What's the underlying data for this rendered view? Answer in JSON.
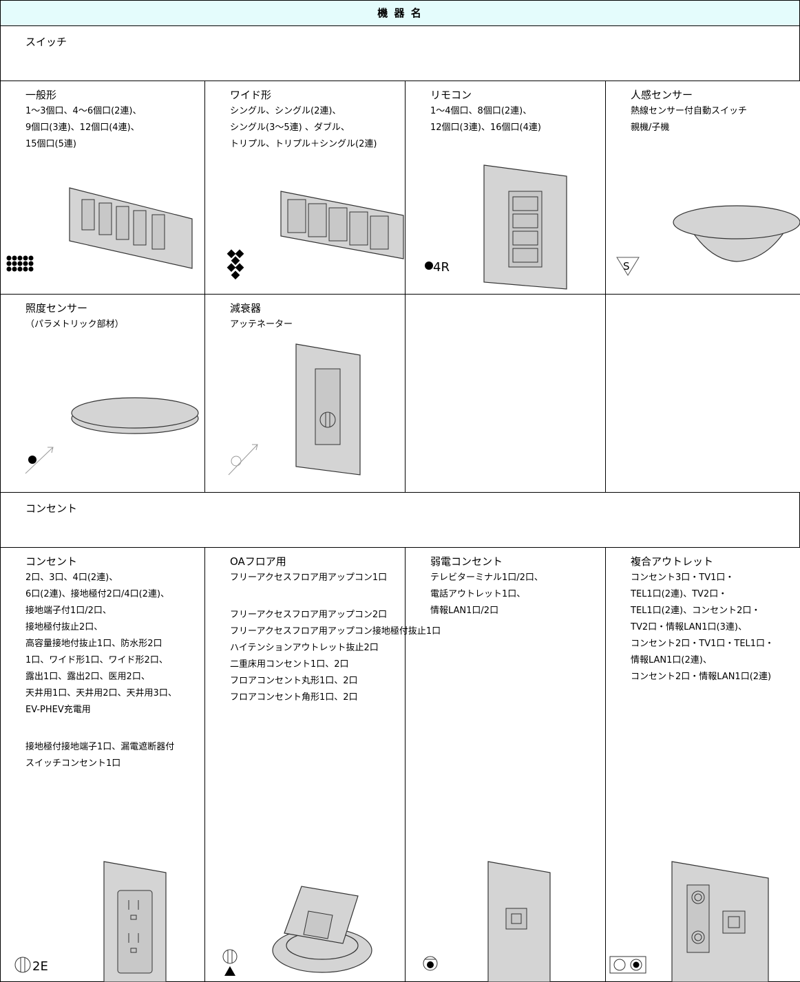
{
  "header": {
    "title": "機 器 名"
  },
  "sections": [
    {
      "title": "スイッチ",
      "cells": [
        {
          "title": "一般形",
          "blocks": [
            [
              "1～3個口、4～6個口(2連)、",
              "9個口(3連)、12個口(4連)、",
              "15個口(5連)"
            ]
          ]
        },
        {
          "title": "ワイド形",
          "blocks": [
            [
              "シングル、シングル(2連)、",
              "シングル(3～5連) 、ダブル、",
              "トリプル、トリプル＋シングル(2連)"
            ]
          ]
        },
        {
          "title": "リモコン",
          "blocks": [
            [
              "1～4個口、8個口(2連)、",
              "12個口(3連)、16個口(4連)"
            ]
          ],
          "symbol": "4R"
        },
        {
          "title": "人感センサー",
          "blocks": [
            [
              "熱線センサー付自動スイッチ",
              "親機/子機"
            ]
          ],
          "symbol": "S"
        },
        {
          "title": "照度センサー",
          "blocks": [
            [
              "（パラメトリック部材）"
            ]
          ]
        },
        {
          "title": "減衰器",
          "blocks": [
            [
              "アッテネーター"
            ]
          ]
        }
      ]
    },
    {
      "title": "コンセント",
      "cells": [
        {
          "title": "コンセント",
          "blocks": [
            [
              "2口、3口、4口(2連)、",
              "6口(2連)、接地極付2口/4口(2連)、",
              "接地端子付1口/2口、",
              "接地極付抜止2口、",
              "高容量接地付抜止1口、防水形2口",
              "1口、ワイド形1口、ワイド形2口、",
              "露出1口、露出2口、医用2口、",
              "天井用1口、天井用2口、天井用3口、",
              "EV-PHEV充電用"
            ],
            [
              "接地極付接地端子1口、漏電遮断器付",
              "スイッチコンセント1口"
            ]
          ],
          "symbol": "2E"
        },
        {
          "title": "OAフロア用",
          "blocks": [
            [
              "フリーアクセスフロア用アップコン1口"
            ],
            [
              "フリーアクセスフロア用アップコン2口",
              "フリーアクセスフロア用アップコン接地極付抜止1口",
              "ハイテンションアウトレット抜止2口",
              "二重床用コンセント1口、2口",
              "フロアコンセント丸形1口、2口",
              "フロアコンセント角形1口、2口"
            ]
          ]
        },
        {
          "title": "弱電コンセント",
          "blocks": [
            [
              "テレビターミナル1口/2口、",
              "電話アウトレット1口、",
              "情報LAN1口/2口"
            ]
          ]
        },
        {
          "title": "複合アウトレット",
          "blocks": [
            [
              " コンセント3口・TV1口・",
              "TEL1口(2連)、TV2口・",
              "TEL1口(2連)、コンセント2口・",
              "TV2口・情報LAN1口(3連)、",
              "コンセント2口・TV1口・TEL1口・",
              "情報LAN1口(2連)、",
              "コンセント2口・情報LAN1口(2連)"
            ]
          ]
        }
      ]
    }
  ]
}
